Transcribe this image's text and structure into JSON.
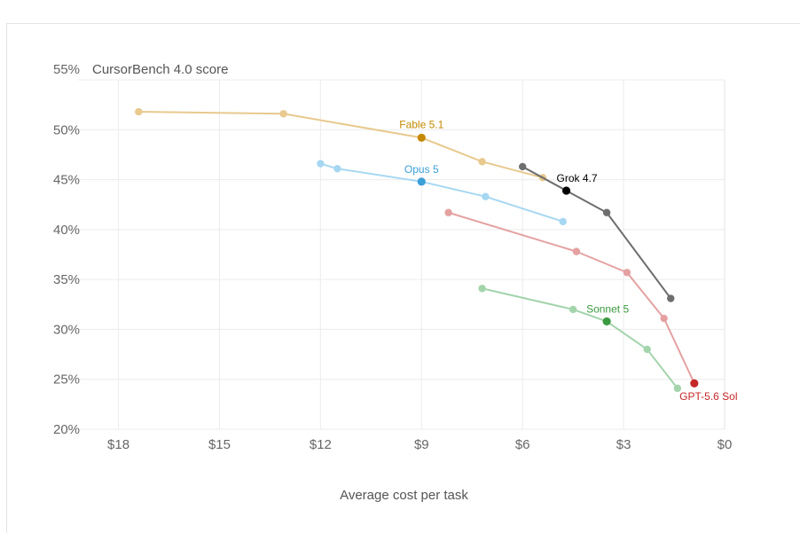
{
  "chart_data": {
    "type": "line",
    "title": "CursorBench 4.0 score",
    "xlabel": "Average cost per task",
    "ylabel": "",
    "xlim": [
      19.2,
      0
    ],
    "ylim": [
      20,
      55
    ],
    "x_ticks": [
      "$18",
      "$15",
      "$12",
      "$9",
      "$6",
      "$3",
      "$0"
    ],
    "x_tick_values": [
      18,
      15,
      12,
      9,
      6,
      3,
      0
    ],
    "y_ticks": [
      "55%",
      "50%",
      "45%",
      "40%",
      "35%",
      "30%",
      "25%",
      "20%"
    ],
    "y_tick_values": [
      55,
      50,
      45,
      40,
      35,
      30,
      25,
      20
    ],
    "grid": true,
    "x_reversed": true,
    "series": [
      {
        "name": "Fable 5.1",
        "color": "#e8c98e",
        "highlight_color": "#c48a00",
        "label_color": "#c48a00",
        "highlight_index": 2,
        "points": [
          {
            "x": 17.4,
            "y": 51.8
          },
          {
            "x": 13.1,
            "y": 51.6
          },
          {
            "x": 9.0,
            "y": 49.2
          },
          {
            "x": 7.2,
            "y": 46.8
          },
          {
            "x": 5.4,
            "y": 45.2
          }
        ]
      },
      {
        "name": "Opus 5",
        "color": "#a6d7f2",
        "highlight_color": "#3c9fd8",
        "label_color": "#3c9fd8",
        "highlight_index": 2,
        "points": [
          {
            "x": 12.0,
            "y": 46.6
          },
          {
            "x": 11.5,
            "y": 46.1
          },
          {
            "x": 9.0,
            "y": 44.8
          },
          {
            "x": 7.1,
            "y": 43.3
          },
          {
            "x": 4.8,
            "y": 40.8
          }
        ]
      },
      {
        "name": "Grok 4.7",
        "color": "#6e6e6e",
        "highlight_color": "#000000",
        "label_color": "#000000",
        "highlight_index": 1,
        "points": [
          {
            "x": 6.0,
            "y": 46.3
          },
          {
            "x": 4.7,
            "y": 43.9
          },
          {
            "x": 3.5,
            "y": 41.7
          },
          {
            "x": 1.6,
            "y": 33.1
          }
        ]
      },
      {
        "name": "GPT-5.6 Sol",
        "color": "#e5a1a1",
        "highlight_color": "#c62828",
        "label_color": "#c62828",
        "highlight_index": 4,
        "points": [
          {
            "x": 8.2,
            "y": 41.7
          },
          {
            "x": 4.4,
            "y": 37.8
          },
          {
            "x": 2.9,
            "y": 35.7
          },
          {
            "x": 1.8,
            "y": 31.1
          },
          {
            "x": 0.9,
            "y": 24.6
          }
        ]
      },
      {
        "name": "Sonnet 5",
        "color": "#a3d4ab",
        "highlight_color": "#3a9a3f",
        "label_color": "#3a9a3f",
        "highlight_index": 2,
        "points": [
          {
            "x": 7.2,
            "y": 34.1
          },
          {
            "x": 4.5,
            "y": 32.0
          },
          {
            "x": 3.5,
            "y": 30.8
          },
          {
            "x": 2.3,
            "y": 28.0
          },
          {
            "x": 1.4,
            "y": 24.1
          }
        ]
      }
    ]
  }
}
